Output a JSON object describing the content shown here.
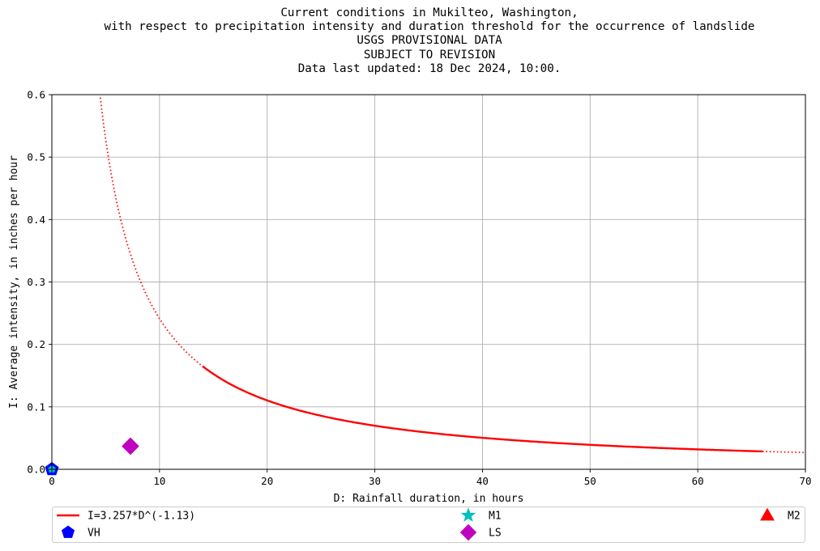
{
  "chart_data": {
    "type": "line",
    "title_lines": [
      "Current conditions in Mukilteo, Washington,",
      "with respect to precipitation intensity and duration threshold for the occurrence of landslide",
      "USGS PROVISIONAL DATA",
      "SUBJECT TO REVISION",
      "Data last updated: 18 Dec 2024, 10:00."
    ],
    "xlabel": "D: Rainfall duration, in hours",
    "ylabel": "I: Average intensity, in inches per hour",
    "xlim": [
      0,
      70
    ],
    "ylim": [
      0,
      0.6
    ],
    "x_ticks": [
      "0",
      "10",
      "20",
      "30",
      "40",
      "50",
      "60",
      "70"
    ],
    "x_tick_values": [
      0,
      10,
      20,
      30,
      40,
      50,
      60,
      70
    ],
    "y_ticks": [
      "0.0",
      "0.1",
      "0.2",
      "0.3",
      "0.4",
      "0.5",
      "0.6"
    ],
    "y_tick_values": [
      0,
      0.1,
      0.2,
      0.3,
      0.4,
      0.5,
      0.6
    ],
    "grid": true,
    "threshold": {
      "name": "I=3.257*D^(-1.13)",
      "coefficient": 3.257,
      "exponent": -1.13,
      "solid_range": [
        14,
        66
      ],
      "dotted_range": [
        4.5,
        70
      ],
      "color": "#ff0000"
    },
    "series": [
      {
        "name": "VH",
        "marker": "pentagon",
        "color": "#0000ff",
        "points": [
          [
            0,
            0
          ]
        ]
      },
      {
        "name": "M1",
        "marker": "star",
        "color": "#00bfbf",
        "points": []
      },
      {
        "name": "LS",
        "marker": "diamond",
        "color": "#bf00bf",
        "points": [
          [
            7.3,
            0.037
          ]
        ]
      },
      {
        "name": "M2",
        "marker": "triangle",
        "color": "#ff0000",
        "points": []
      }
    ],
    "legend": {
      "placement": "bottom",
      "entries": [
        {
          "label": "I=3.257*D^(-1.13)",
          "marker": "line",
          "color": "#ff0000"
        },
        {
          "label": "M1",
          "marker": "star",
          "color": "#00bfbf"
        },
        {
          "label": "M2",
          "marker": "triangle",
          "color": "#ff0000"
        },
        {
          "label": "VH",
          "marker": "pentagon",
          "color": "#0000ff"
        },
        {
          "label": "LS",
          "marker": "diamond",
          "color": "#bf00bf"
        }
      ]
    }
  }
}
